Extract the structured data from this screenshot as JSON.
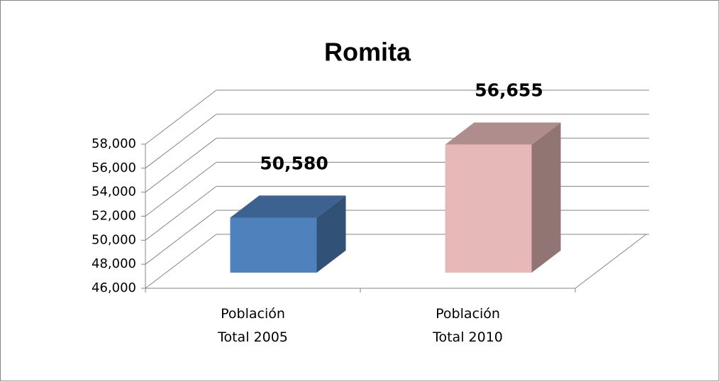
{
  "chart_data": {
    "type": "bar3d",
    "title": "Romita",
    "categories": [
      "Población Total 2005",
      "Población Total 2010"
    ],
    "values": [
      50580,
      56655
    ],
    "value_labels": [
      "50,580",
      "56,655"
    ],
    "colors": [
      "#4f81bd",
      "#e6b9b8"
    ],
    "ylim": [
      46000,
      58000
    ],
    "yticks": [
      {
        "value": 46000,
        "label": "46,000"
      },
      {
        "value": 48000,
        "label": "48,000"
      },
      {
        "value": 50000,
        "label": "50,000"
      },
      {
        "value": 52000,
        "label": "52,000"
      },
      {
        "value": 54000,
        "label": "54,000"
      },
      {
        "value": 56000,
        "label": "56,000"
      },
      {
        "value": 58000,
        "label": "58,000"
      }
    ],
    "grid": true
  }
}
